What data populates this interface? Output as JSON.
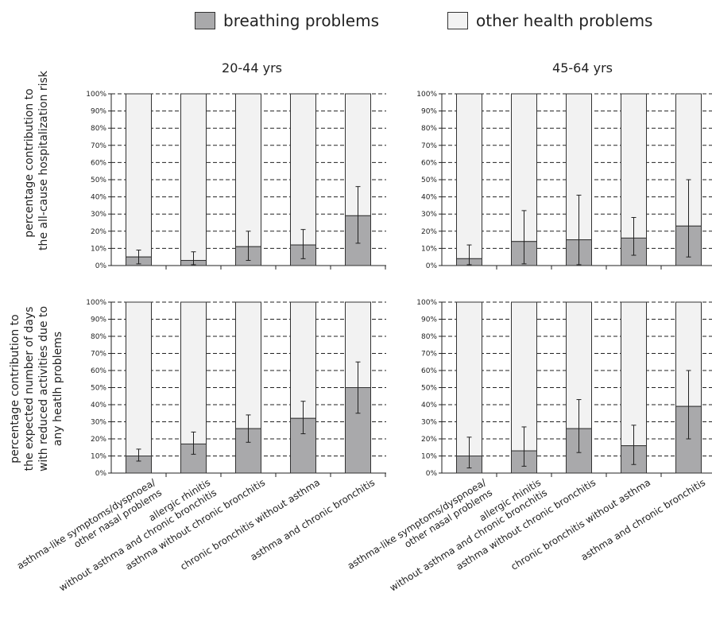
{
  "legend": [
    {
      "label": "breathing problems",
      "color": "#a9a9ab"
    },
    {
      "label": "other health problems",
      "color": "#f2f2f2"
    }
  ],
  "panel_titles": [
    "20-44 yrs",
    "45-64 yrs"
  ],
  "y_axis_labels": [
    [
      "percentage contribution to",
      "the all-cause hospitalization risk"
    ],
    [
      "percentage contribution to",
      "the expected number of days",
      "with reduced activities due to",
      "any heatlh problems"
    ]
  ],
  "chart_data": {
    "type": "bar",
    "stacked": true,
    "ylim": [
      0,
      100
    ],
    "yticks": [
      "0%",
      "10%",
      "20%",
      "30%",
      "40%",
      "50%",
      "60%",
      "70%",
      "80%",
      "90%",
      "100%"
    ],
    "grid": "dashed horizontal",
    "categories": [
      [
        "asthma-like symptoms/dyspnoea/",
        "other nasal problems"
      ],
      [
        "allergic rhinitis",
        "without asthma and chronic bronchitis"
      ],
      [
        "asthma without chronic bronchitis"
      ],
      [
        "chronic bronchitis without asthma"
      ],
      [
        "asthma and chronic bronchitis"
      ]
    ],
    "panels": [
      {
        "row": 0,
        "col": 0,
        "breathing": [
          5,
          3,
          11,
          12,
          29
        ],
        "err_low": [
          1,
          0.5,
          3,
          4,
          13
        ],
        "err_high": [
          9,
          8,
          20,
          21,
          46
        ]
      },
      {
        "row": 0,
        "col": 1,
        "breathing": [
          4,
          14,
          15,
          16,
          23
        ],
        "err_low": [
          0.5,
          1,
          0.5,
          6,
          5
        ],
        "err_high": [
          12,
          32,
          41,
          28,
          50
        ]
      },
      {
        "row": 1,
        "col": 0,
        "breathing": [
          10,
          17,
          26,
          32,
          50
        ],
        "err_low": [
          7,
          11,
          18,
          23,
          35
        ],
        "err_high": [
          14,
          24,
          34,
          42,
          65
        ]
      },
      {
        "row": 1,
        "col": 1,
        "breathing": [
          10,
          13,
          26,
          16,
          39
        ],
        "err_low": [
          3,
          4,
          12,
          5,
          20
        ],
        "err_high": [
          21,
          27,
          43,
          28,
          60
        ]
      }
    ]
  }
}
